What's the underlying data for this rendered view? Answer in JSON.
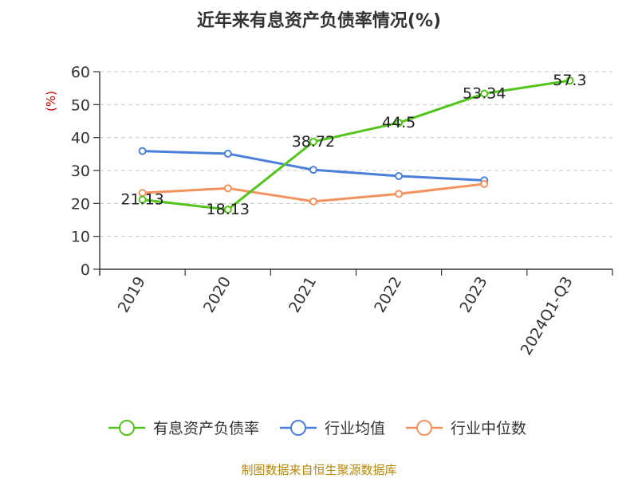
{
  "chart_data": {
    "type": "line",
    "title": "近年来有息资产负债率情况(%)",
    "ylabel": "(%)",
    "categories": [
      "2019",
      "2020",
      "2021",
      "2022",
      "2023",
      "2024Q1-Q3"
    ],
    "ylim": [
      0,
      60
    ],
    "yticks": [
      0,
      10,
      20,
      30,
      40,
      50,
      60
    ],
    "grid": true,
    "legend_position": "bottom",
    "series": [
      {
        "name": "有息资产负债率",
        "color": "#52c41a",
        "labeled": true,
        "values": [
          21.13,
          18.13,
          38.72,
          44.5,
          53.34,
          57.3
        ]
      },
      {
        "name": "行业均值",
        "color": "#4a7fdc",
        "labeled": false,
        "values": [
          35.9,
          35.1,
          30.2,
          28.3,
          27.0,
          null
        ]
      },
      {
        "name": "行业中位数",
        "color": "#f4925e",
        "labeled": false,
        "values": [
          23.2,
          24.6,
          20.6,
          22.9,
          25.9,
          null
        ]
      }
    ]
  },
  "footer": {
    "text": "制图数据来自恒生聚源数据库",
    "color": "#b8860b"
  },
  "colors": {
    "ylabel": "#cc0000",
    "grid": "#c8c8c8",
    "axis": "#333333"
  }
}
